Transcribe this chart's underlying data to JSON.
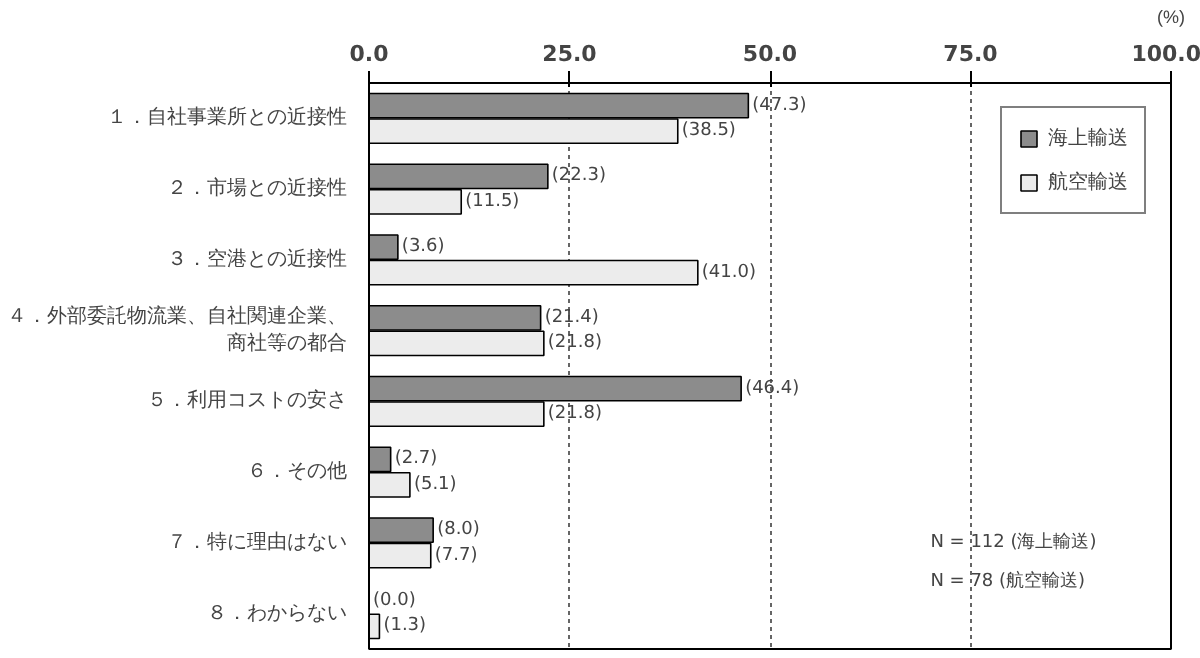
{
  "chart_data": {
    "type": "bar",
    "orientation": "horizontal",
    "xlabel": "(%)",
    "categories": [
      "１．自社事業所との近接性",
      "２．市場との近接性",
      "３．空港との近接性",
      "４．外部委託物流業、自社関連企業、商社等の都合",
      "５．利用コストの安さ",
      "６．その他",
      "７．特に理由はない",
      "８．わからない"
    ],
    "series": [
      {
        "name": "海上輸送",
        "color": "#8c8c8c",
        "values": [
          47.3,
          22.3,
          3.6,
          21.4,
          46.4,
          2.7,
          8.0,
          0.0
        ],
        "value_labels": [
          "(47.3)",
          "(22.3)",
          "(3.6)",
          "(21.4)",
          "(46.4)",
          "(2.7)",
          "(8.0)",
          "(0.0)"
        ]
      },
      {
        "name": "航空輸送",
        "color": "#ececec",
        "values": [
          38.5,
          11.5,
          41.0,
          21.8,
          21.8,
          5.1,
          7.7,
          1.3
        ],
        "value_labels": [
          "(38.5)",
          "(11.5)",
          "(41.0)",
          "(21.8)",
          "(21.8)",
          "(5.1)",
          "(7.7)",
          "(1.3)"
        ]
      }
    ],
    "xlim": [
      0,
      100
    ],
    "xticks": [
      {
        "value": 0,
        "label": "0.0"
      },
      {
        "value": 25,
        "label": "25.0"
      },
      {
        "value": 50,
        "label": "50.0"
      },
      {
        "value": 75,
        "label": "75.0"
      },
      {
        "value": 100,
        "label": "100.0"
      }
    ],
    "grid": "x",
    "legend": "top right",
    "annotations": [
      "N = 112 (海上輸送)",
      "N = 78  (航空輸送)"
    ]
  }
}
